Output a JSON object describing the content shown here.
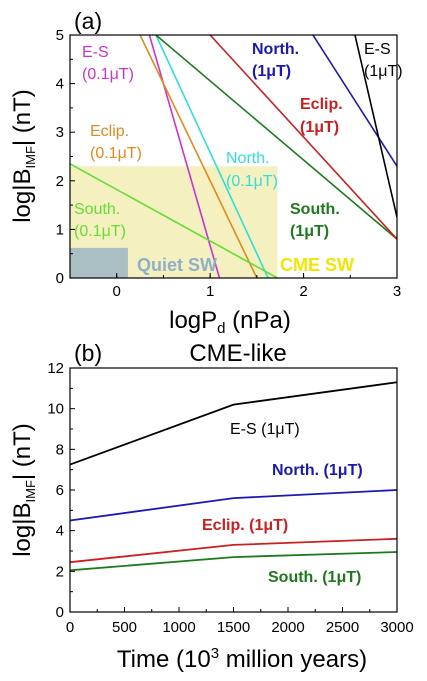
{
  "chart_data": [
    {
      "type": "line",
      "panel_label": "(a)",
      "title": "",
      "xlabel": "logP",
      "xlabel_sub": "d",
      "xlabel_unit": " (nPa)",
      "ylabel": "log|B",
      "ylabel_sub": "IMF",
      "ylabel_unit": "| (nT)",
      "xlim": [
        -0.5,
        3
      ],
      "ylim": [
        0,
        5
      ],
      "xticks": [
        0,
        1,
        2,
        3
      ],
      "yticks": [
        0,
        1,
        2,
        3,
        4,
        5
      ],
      "grid": false,
      "regions": [
        {
          "name": "CME SW",
          "x": [
            -0.5,
            1.72
          ],
          "y": [
            0,
            2.3
          ],
          "color": "#f4f0c0",
          "label_color": "#f2e600"
        },
        {
          "name": "Quiet SW",
          "x": [
            -0.5,
            0.12
          ],
          "y": [
            0,
            0.62
          ],
          "color": "#a9bfc4",
          "label_color": "#8fb0c9"
        }
      ],
      "series": [
        {
          "name": "E-S",
          "sub": "(0.1μT)",
          "color": "#cc33cc",
          "x": [
            0.35,
            1.1
          ],
          "y": [
            5,
            0
          ]
        },
        {
          "name": "Eclip.",
          "sub": "(0.1μT)",
          "color": "#e08a20",
          "x": [
            0.25,
            1.5
          ],
          "y": [
            5,
            0
          ]
        },
        {
          "name": "North.",
          "sub": "(0.1μT)",
          "color": "#33dddd",
          "x": [
            0.42,
            1.62
          ],
          "y": [
            5,
            0
          ]
        },
        {
          "name": "South.",
          "sub": "(0.1μT)",
          "color": "#66dd33",
          "x": [
            -0.5,
            1.72
          ],
          "y": [
            2.35,
            0
          ]
        },
        {
          "name": "South.",
          "sub": "(1μT)",
          "color": "#1f7a1f",
          "x": [
            0.42,
            3.0
          ],
          "y": [
            5,
            0.8
          ]
        },
        {
          "name": "Eclip.",
          "sub": "(1μT)",
          "color": "#cc1f1f",
          "x": [
            1.0,
            3.0
          ],
          "y": [
            5,
            0.8
          ]
        },
        {
          "name": "North.",
          "sub": "(1μT)",
          "color": "#1a1ab3",
          "x": [
            2.1,
            3.0
          ],
          "y": [
            5,
            2.3
          ]
        },
        {
          "name": "E-S",
          "sub": "(1μT)",
          "color": "#000000",
          "x": [
            2.55,
            3.0
          ],
          "y": [
            5,
            1.25
          ]
        }
      ]
    },
    {
      "type": "line",
      "panel_label": "(b)",
      "title": "CME-like",
      "xlabel": "Time (10",
      "xlabel_sup": "3",
      "xlabel_unit": " million years)",
      "ylabel": "log|B",
      "ylabel_sub": "IMF",
      "ylabel_unit": "| (nT)",
      "xlim": [
        0,
        3000
      ],
      "ylim": [
        0,
        12
      ],
      "xticks": [
        0,
        500,
        1000,
        1500,
        2000,
        2500,
        3000
      ],
      "yticks": [
        0,
        2,
        4,
        6,
        8,
        10,
        12
      ],
      "grid": false,
      "series": [
        {
          "name": "E-S (1μT)",
          "color": "#000000",
          "x": [
            0,
            1500,
            3000
          ],
          "y": [
            7.25,
            10.2,
            11.3
          ]
        },
        {
          "name": "North. (1μT)",
          "color": "#1a1ab3",
          "x": [
            0,
            1500,
            3000
          ],
          "y": [
            4.5,
            5.6,
            6.0
          ]
        },
        {
          "name": "Eclip. (1μT)",
          "color": "#cc1f1f",
          "x": [
            0,
            1500,
            3000
          ],
          "y": [
            2.45,
            3.3,
            3.6
          ]
        },
        {
          "name": "South. (1μT)",
          "color": "#1f7a1f",
          "x": [
            0,
            1500,
            3000
          ],
          "y": [
            2.05,
            2.7,
            2.95
          ]
        }
      ]
    }
  ]
}
